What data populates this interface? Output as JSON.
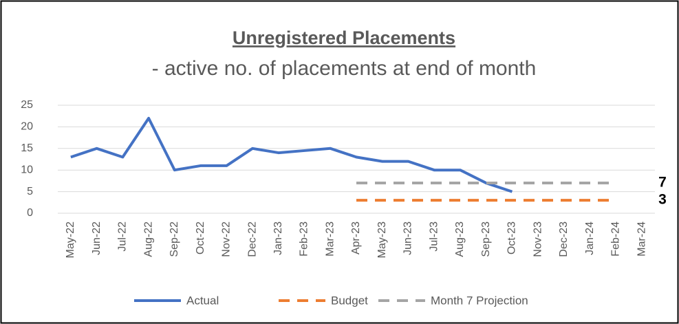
{
  "chart_data": {
    "type": "line",
    "title": "Unregistered Placements",
    "subtitle": "- active no. of placements at end of month",
    "categories": [
      "May-22",
      "Jun-22",
      "Jul-22",
      "Aug-22",
      "Sep-22",
      "Oct-22",
      "Nov-22",
      "Dec-22",
      "Jan-23",
      "Feb-23",
      "Mar-23",
      "Apr-23",
      "May-23",
      "Jun-23",
      "Jul-23",
      "Aug-23",
      "Sep-23",
      "Oct-23",
      "Nov-23",
      "Dec-23",
      "Jan-24",
      "Feb-24",
      "Mar-24"
    ],
    "series": [
      {
        "name": "Actual",
        "color": "#4472c4",
        "dashed": false,
        "values": [
          13,
          15,
          13,
          22,
          10,
          11,
          11,
          15,
          14,
          14.5,
          15,
          13,
          12,
          12,
          10,
          10,
          7,
          5,
          null,
          null,
          null,
          null,
          null
        ]
      },
      {
        "name": "Budget",
        "color": "#ed7d31",
        "dashed": true,
        "values": [
          null,
          null,
          null,
          null,
          null,
          null,
          null,
          null,
          null,
          null,
          null,
          3,
          3,
          3,
          3,
          3,
          3,
          3,
          3,
          3,
          3,
          3,
          null
        ]
      },
      {
        "name": "Month 7 Projection",
        "color": "#a5a5a5",
        "dashed": true,
        "values": [
          null,
          null,
          null,
          null,
          null,
          null,
          null,
          null,
          null,
          null,
          null,
          7,
          7,
          7,
          7,
          7,
          7,
          7,
          7,
          7,
          7,
          7,
          null
        ]
      }
    ],
    "ylim": [
      0,
      25
    ],
    "yticks": [
      0,
      5,
      10,
      15,
      20,
      25
    ],
    "grid": true,
    "legend": "bottom"
  }
}
